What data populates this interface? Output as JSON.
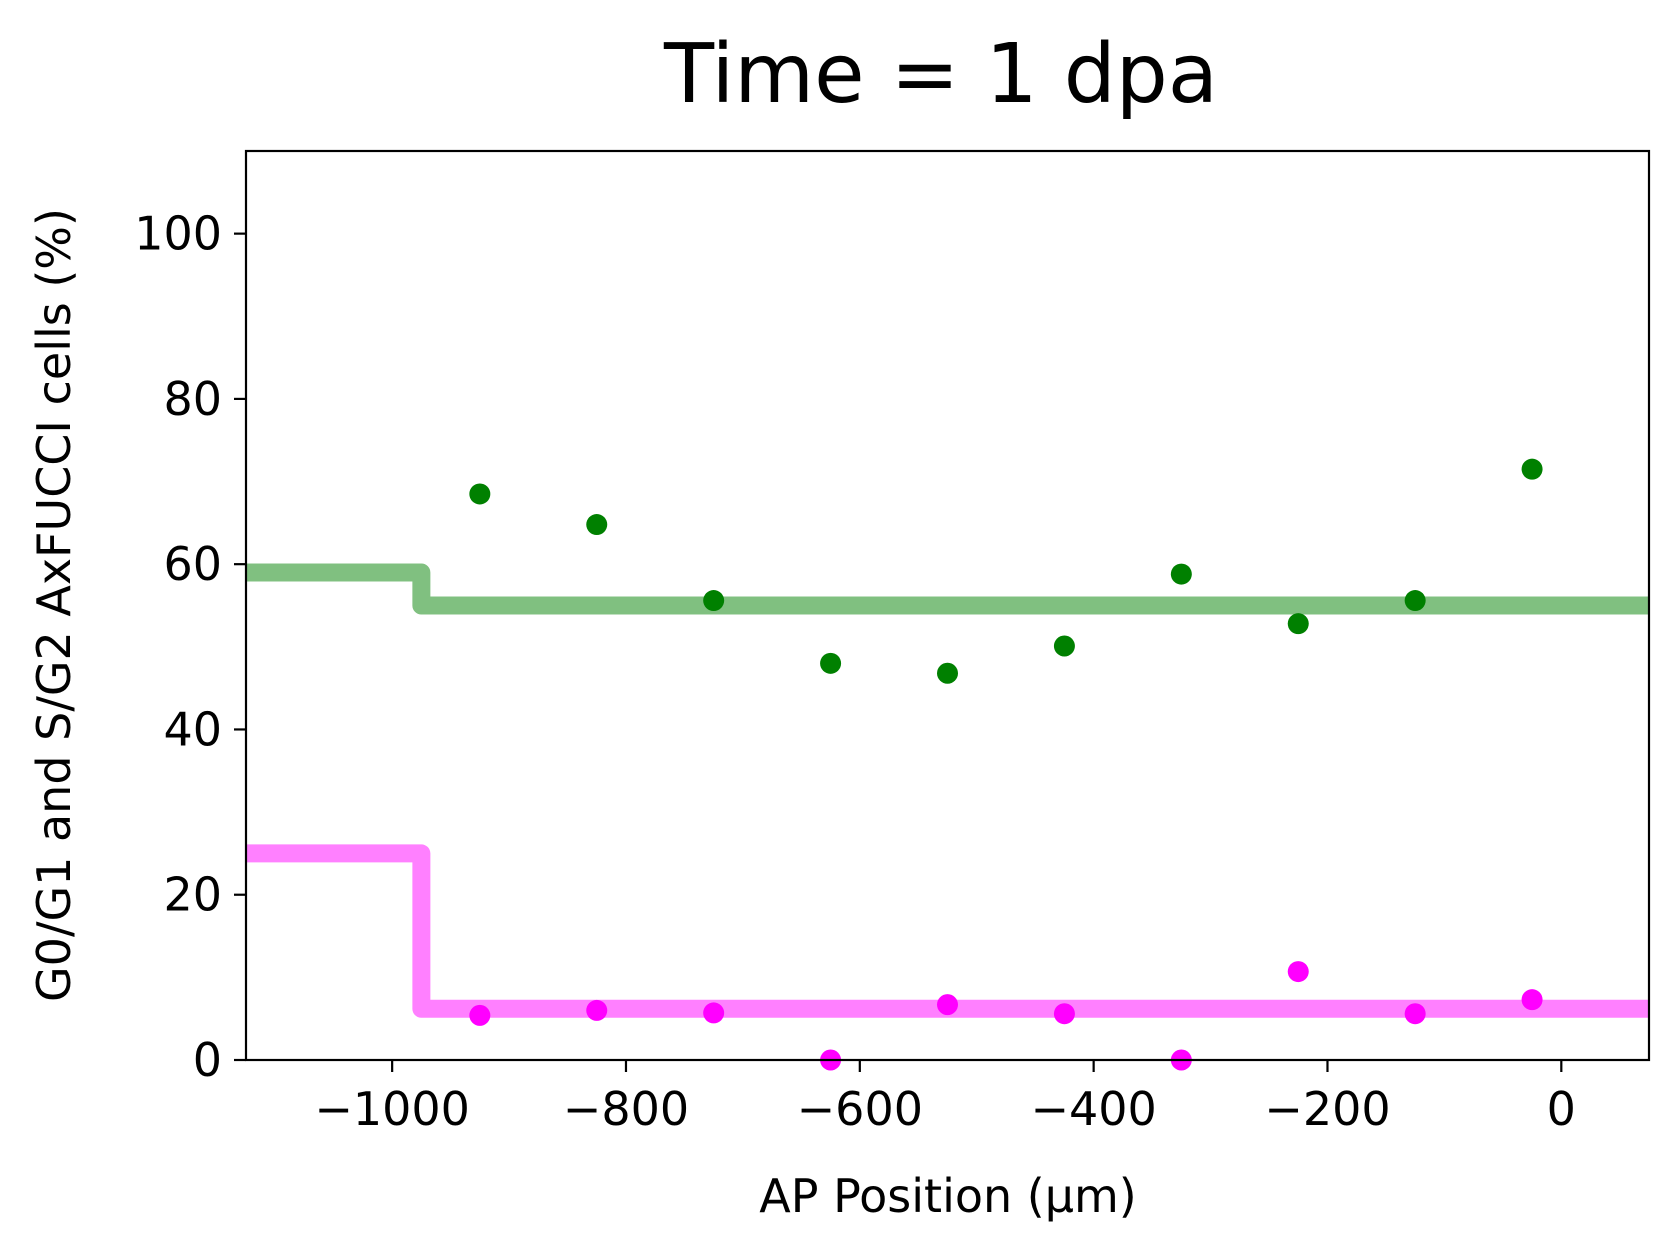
{
  "chart_data": {
    "type": "scatter",
    "title": "Time = 1 dpa",
    "xlabel": "AP Position (μm)",
    "ylabel": "G0/G1 and S/G2 AxFUCCI cells (%)",
    "xlim": [
      -1125,
      75
    ],
    "ylim": [
      0,
      110
    ],
    "xticks": [
      -1000,
      -800,
      -600,
      -400,
      -200,
      0
    ],
    "xtick_labels": [
      "−1000",
      "−800",
      "−600",
      "−400",
      "−200",
      "0"
    ],
    "yticks": [
      0,
      20,
      40,
      60,
      80,
      100
    ],
    "ytick_labels": [
      "0",
      "20",
      "40",
      "60",
      "80",
      "100"
    ],
    "grid": false,
    "legend": "none",
    "series": [
      {
        "color": "#008000",
        "x": [
          -925,
          -825,
          -725,
          -625,
          -525,
          -425,
          -325,
          -225,
          -125,
          -25
        ],
        "y": [
          68.5,
          64.8,
          55.6,
          48.0,
          46.8,
          50.1,
          58.8,
          52.8,
          55.6,
          71.5
        ],
        "step": {
          "color": "#80c080",
          "breakpoint": -975,
          "before": 59.0,
          "after": 55.0
        }
      },
      {
        "color": "#ff00ff",
        "x": [
          -925,
          -825,
          -725,
          -625,
          -525,
          -425,
          -325,
          -225,
          -125,
          -25
        ],
        "y": [
          5.4,
          6.0,
          5.7,
          0.0,
          6.7,
          5.6,
          0.0,
          10.7,
          5.6,
          7.3
        ],
        "step": {
          "color": "#ff80ff",
          "breakpoint": -975,
          "before": 25.0,
          "after": 6.2
        }
      }
    ]
  }
}
